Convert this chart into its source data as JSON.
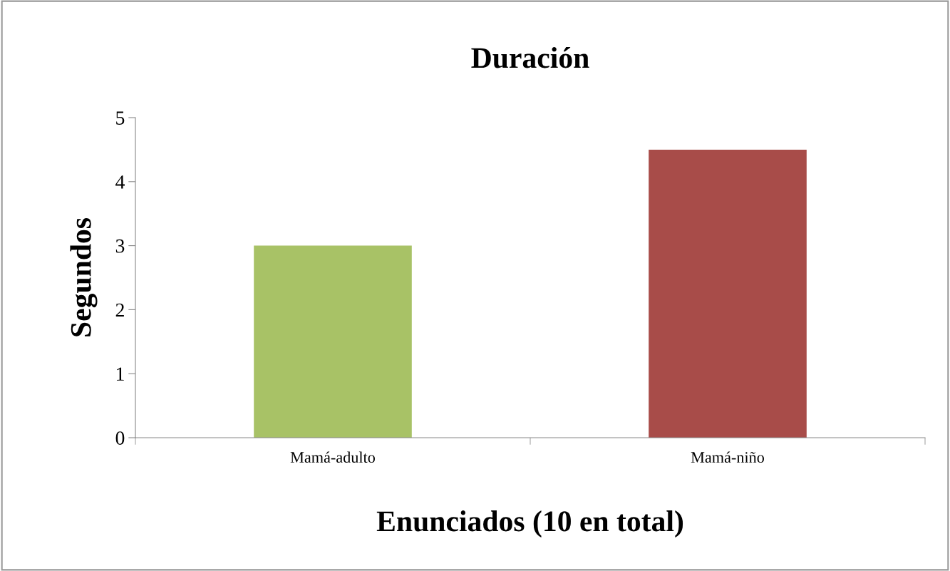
{
  "chart_data": {
    "type": "bar",
    "title": "Duración",
    "xlabel": "Enunciados (10 en total)",
    "ylabel": "Segundos",
    "categories": [
      "Mamá-adulto",
      "Mamá-niño"
    ],
    "values": [
      3.0,
      4.5
    ],
    "colors": [
      "#a8c266",
      "#a84c49"
    ],
    "ylim": [
      0,
      5
    ],
    "yticks": [
      0,
      1,
      2,
      3,
      4,
      5
    ],
    "grid": false,
    "legend": false
  }
}
